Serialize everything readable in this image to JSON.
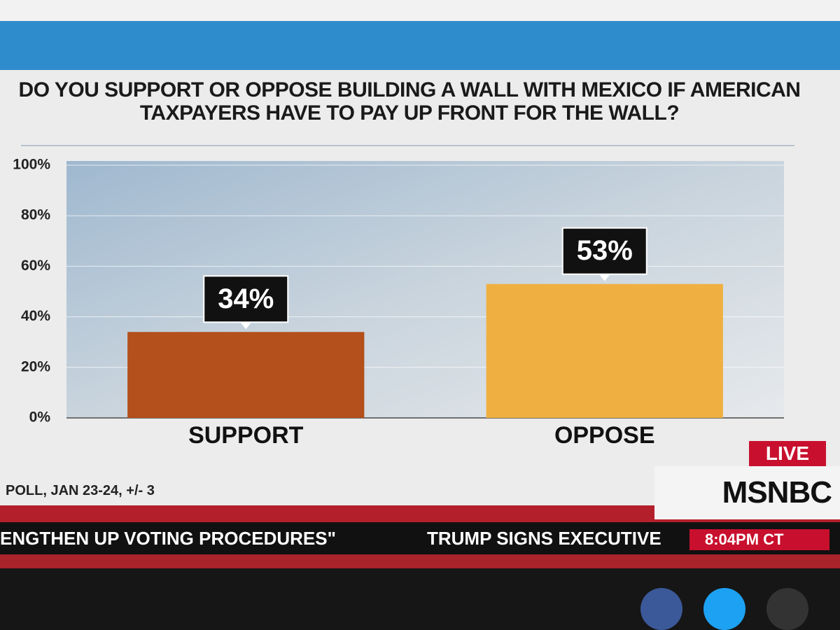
{
  "chart_data": {
    "type": "bar",
    "title": "DO YOU SUPPORT OR OPPOSE BUILDING A WALL WITH MEXICO IF AMERICAN TAXPAYERS HAVE TO PAY UP FRONT FOR THE WALL?",
    "categories": [
      "SUPPORT",
      "OPPOSE"
    ],
    "values": [
      34,
      53
    ],
    "value_labels": [
      "34%",
      "53%"
    ],
    "colors": [
      "#b4501b",
      "#efb041"
    ],
    "ylim": [
      0,
      100
    ],
    "yticks": [
      {
        "value": 0,
        "label": "0%"
      },
      {
        "value": 20,
        "label": "20%"
      },
      {
        "value": 40,
        "label": "40%"
      },
      {
        "value": 60,
        "label": "60%"
      },
      {
        "value": 80,
        "label": "80%"
      },
      {
        "value": 100,
        "label": "100%"
      }
    ],
    "grid": true,
    "note": "POLL, JAN 23-24, +/- 3"
  },
  "broadcast": {
    "live": "LIVE",
    "network": "MSNBC",
    "ticker": [
      "ENGTHEN UP VOTING PROCEDURES\"",
      "TRUMP SIGNS EXECUTIVE"
    ],
    "time": "8:04PM CT"
  }
}
